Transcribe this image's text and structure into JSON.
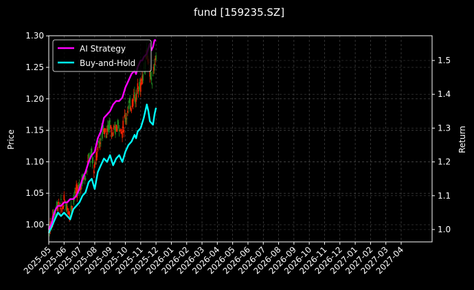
{
  "chart_data": {
    "type": "line",
    "title": "fund [159235.SZ]",
    "xlabel": "",
    "ylabel": "Price",
    "ylabel_right": "Return",
    "ylim": [
      0.975,
      1.3
    ],
    "ylim_right": [
      0.965,
      1.575
    ],
    "grid": true,
    "legend_position": "upper left",
    "x_ticks": [
      "2025-05",
      "2025-06",
      "2025-07",
      "2025-08",
      "2025-09",
      "2025-10",
      "2025-11",
      "2025-12",
      "2026-01",
      "2026-02",
      "2026-03",
      "2026-04",
      "2026-05",
      "2026-06",
      "2026-07",
      "2026-08",
      "2026-09",
      "2026-10",
      "2026-11",
      "2026-12",
      "2027-01",
      "2027-02",
      "2027-03",
      "2027-04"
    ],
    "y_ticks_left": [
      "1.00",
      "1.05",
      "1.10",
      "1.15",
      "1.20",
      "1.25",
      "1.30"
    ],
    "y_ticks_right": [
      "1.0",
      "1.1",
      "1.2",
      "1.3",
      "1.4",
      "1.5"
    ],
    "series": [
      {
        "name": "AI Strategy",
        "axis": "right",
        "color": "#ff00ff",
        "x_month_index": [
          0.0,
          0.1,
          0.2,
          0.3,
          0.45,
          0.6,
          0.8,
          1.0,
          1.2,
          1.4,
          1.6,
          1.8,
          2.0,
          2.2,
          2.4,
          2.6,
          2.7,
          2.8,
          3.0,
          3.2,
          3.4,
          3.5,
          3.6,
          3.8,
          4.0,
          4.2,
          4.4,
          4.5,
          4.6,
          4.8,
          5.0,
          5.2,
          5.4,
          5.6,
          5.7,
          5.8,
          6.0,
          6.1,
          6.2,
          6.4,
          6.6,
          6.7,
          6.8,
          6.9,
          7.0
        ],
        "values": [
          1.0,
          1.01,
          1.02,
          1.04,
          1.06,
          1.07,
          1.07,
          1.08,
          1.08,
          1.09,
          1.09,
          1.1,
          1.12,
          1.15,
          1.17,
          1.2,
          1.21,
          1.22,
          1.23,
          1.27,
          1.29,
          1.31,
          1.33,
          1.34,
          1.35,
          1.37,
          1.38,
          1.38,
          1.38,
          1.39,
          1.42,
          1.44,
          1.46,
          1.47,
          1.46,
          1.48,
          1.5,
          1.5,
          1.51,
          1.52,
          1.55,
          1.53,
          1.54,
          1.56,
          1.56
        ]
      },
      {
        "name": "Buy-and-Hold",
        "axis": "right",
        "color": "#00ffff",
        "x_month_index": [
          0.0,
          0.2,
          0.4,
          0.6,
          0.8,
          1.0,
          1.2,
          1.4,
          1.6,
          1.8,
          2.0,
          2.2,
          2.4,
          2.6,
          2.8,
          3.0,
          3.2,
          3.4,
          3.6,
          3.8,
          4.0,
          4.2,
          4.4,
          4.6,
          4.8,
          5.0,
          5.2,
          5.4,
          5.6,
          5.7,
          5.8,
          6.0,
          6.2,
          6.3,
          6.4,
          6.5,
          6.6,
          6.8,
          6.9,
          7.0
        ],
        "values": [
          0.99,
          1.01,
          1.03,
          1.05,
          1.04,
          1.05,
          1.04,
          1.03,
          1.06,
          1.07,
          1.08,
          1.1,
          1.11,
          1.14,
          1.15,
          1.12,
          1.17,
          1.19,
          1.21,
          1.2,
          1.22,
          1.19,
          1.21,
          1.22,
          1.2,
          1.23,
          1.25,
          1.26,
          1.28,
          1.27,
          1.29,
          1.3,
          1.33,
          1.35,
          1.37,
          1.35,
          1.32,
          1.31,
          1.34,
          1.36
        ]
      },
      {
        "name": "Price candles",
        "axis": "left",
        "type": "candlestick",
        "up_color": "#ff2200",
        "down_color": "#228b22",
        "note": "daily OHLC bars roughly tracking price 0.99 → 1.27 between 2025-05 and 2025-12"
      }
    ]
  },
  "legend": {
    "items": [
      {
        "label": "AI Strategy",
        "color": "#ff00ff"
      },
      {
        "label": "Buy-and-Hold",
        "color": "#00ffff"
      }
    ]
  }
}
